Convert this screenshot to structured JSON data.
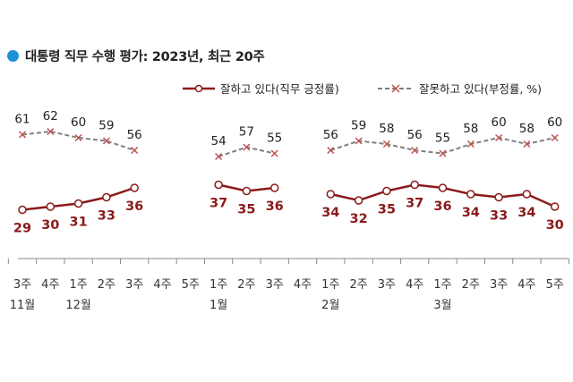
{
  "header": {
    "title": "대통령 직무 수행 평가: 2023년, 최근 20주"
  },
  "colors": {
    "positive": "#8b1a1a",
    "negative": "#808080",
    "accent": "#1e90d8",
    "axis": "#888888"
  },
  "chart_data": {
    "type": "line",
    "title": "대통령 직무 수행 평가: 2023년, 최근 20주",
    "legend_position": "top-right",
    "x": [
      "3주",
      "4주",
      "1주",
      "2주",
      "3주",
      "4주",
      "5주",
      "1주",
      "2주",
      "3주",
      "4주",
      "1주",
      "2주",
      "3주",
      "4주",
      "1주",
      "2주",
      "3주",
      "4주",
      "5주"
    ],
    "month_labels": [
      {
        "index": 0,
        "label": "11월"
      },
      {
        "index": 2,
        "label": "12월"
      },
      {
        "index": 7,
        "label": "1월"
      },
      {
        "index": 11,
        "label": "2월"
      },
      {
        "index": 15,
        "label": "3월"
      }
    ],
    "series": [
      {
        "name": "잘하고 있다(직무 긍정률)",
        "color": "#8b1a1a",
        "marker": "circle",
        "style": "solid",
        "values": [
          29,
          30,
          31,
          33,
          36,
          null,
          null,
          37,
          35,
          36,
          null,
          34,
          32,
          35,
          37,
          36,
          34,
          33,
          34,
          30
        ]
      },
      {
        "name": "잘못하고 있다(부정률, %)",
        "color": "#808080",
        "marker": "x",
        "style": "dashed",
        "values": [
          61,
          62,
          60,
          59,
          56,
          null,
          null,
          54,
          57,
          55,
          null,
          56,
          59,
          58,
          56,
          55,
          58,
          60,
          58,
          60
        ]
      }
    ],
    "grid": false
  }
}
